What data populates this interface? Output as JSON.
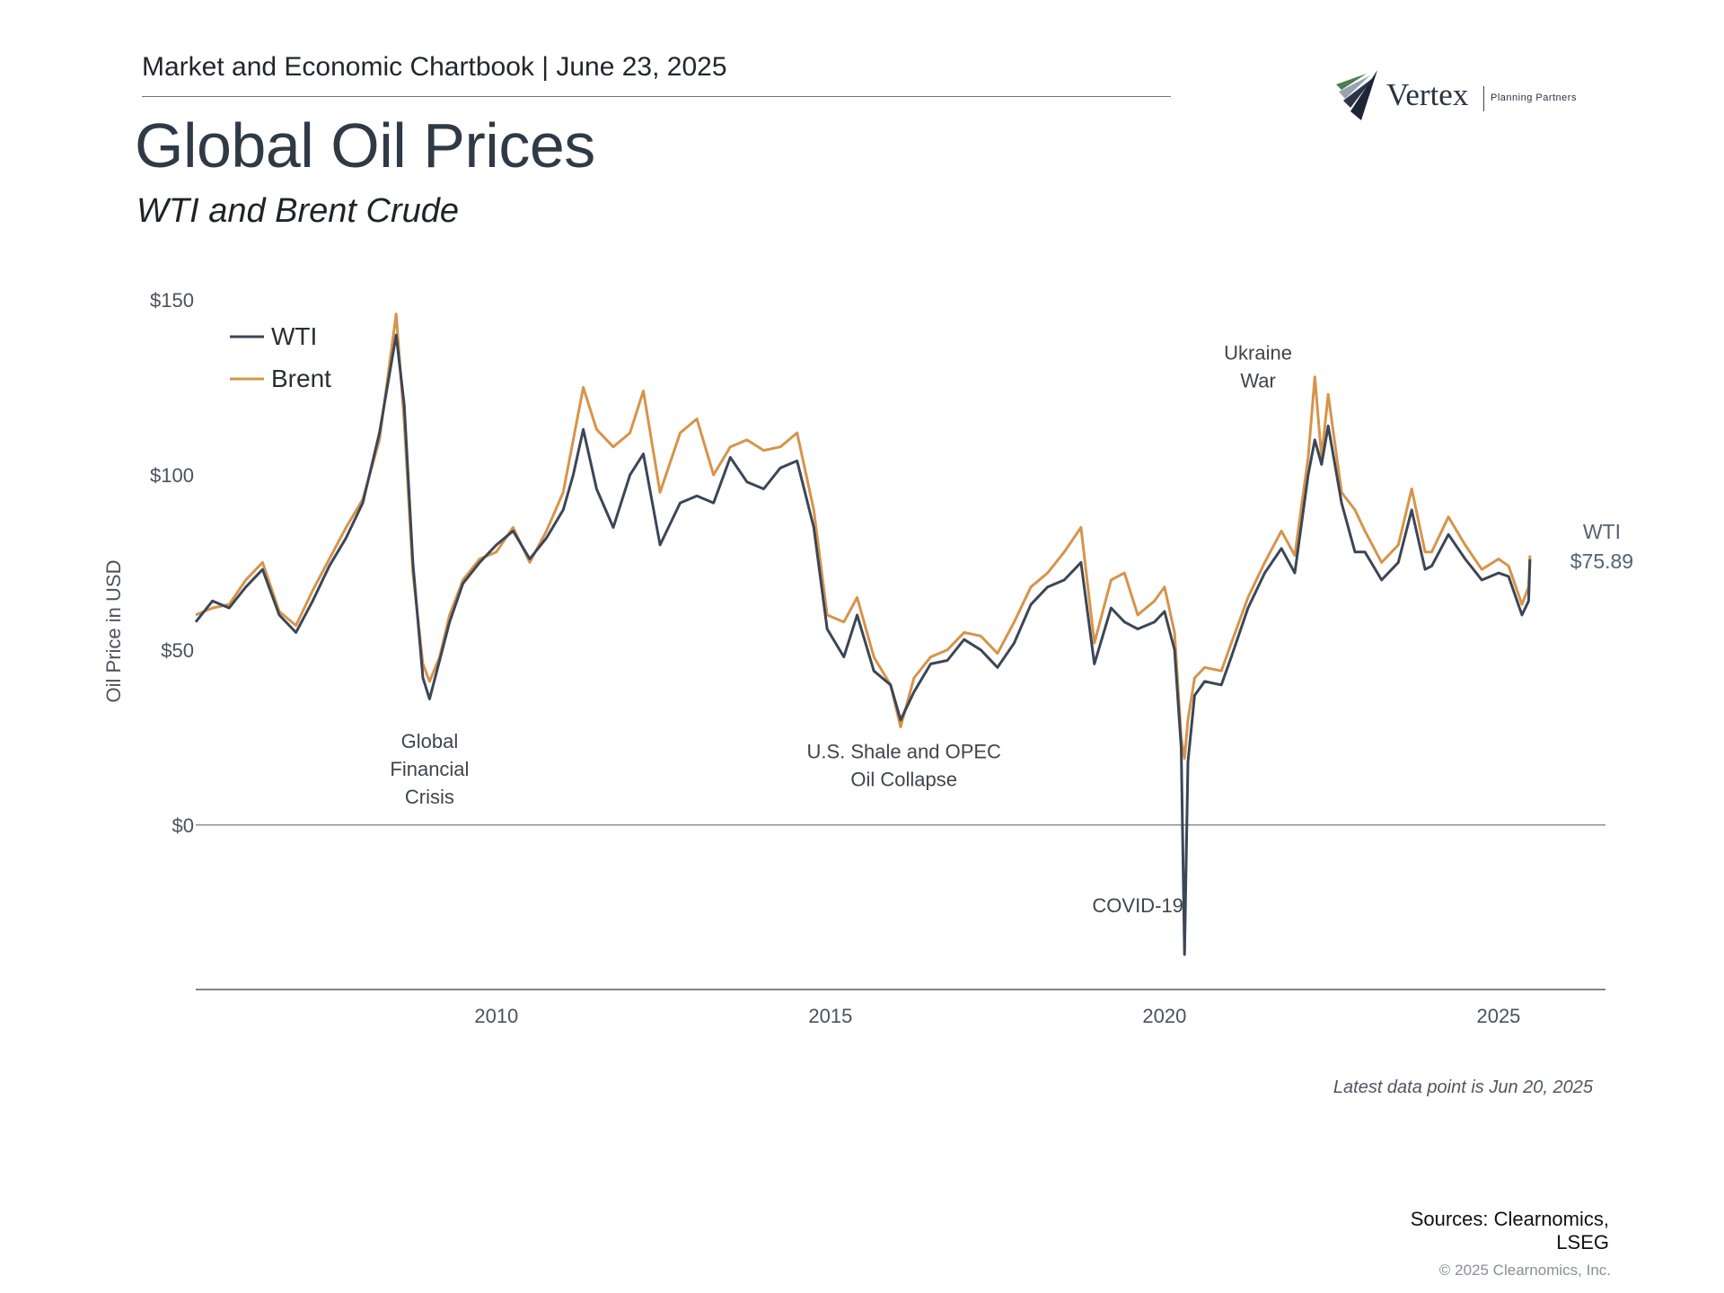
{
  "header": {
    "text": "Market and Economic Chartbook | June 23, 2025"
  },
  "logo": {
    "name": "Vertex",
    "tagline": "Planning Partners"
  },
  "title": "Global Oil Prices",
  "subtitle": "WTI and Brent Crude",
  "footnote": "Latest data point is Jun 20, 2025",
  "sources": "Sources: Clearnomics, LSEG",
  "copyright": "© 2025 Clearnomics, Inc.",
  "colors": {
    "wti": "#3b4656",
    "brent": "#d6944a",
    "axis": "#6f7780",
    "text": "#4a525c"
  },
  "chart_data": {
    "type": "line",
    "ylabel": "Oil Price in USD",
    "ylim": [
      -47,
      150
    ],
    "xlim": [
      2005.5,
      2026.6
    ],
    "yticks": [
      {
        "value": 150,
        "label": "$150"
      },
      {
        "value": 100,
        "label": "$100"
      },
      {
        "value": 50,
        "label": "$50"
      },
      {
        "value": 0,
        "label": "$0"
      }
    ],
    "xticks": [
      {
        "value": 2010,
        "label": "2010"
      },
      {
        "value": 2015,
        "label": "2015"
      },
      {
        "value": 2020,
        "label": "2020"
      },
      {
        "value": 2025,
        "label": "2025"
      }
    ],
    "legend_position": "top-left",
    "series": [
      {
        "name": "WTI",
        "points": [
          [
            2005.5,
            58
          ],
          [
            2005.75,
            64
          ],
          [
            2006.0,
            62
          ],
          [
            2006.25,
            68
          ],
          [
            2006.5,
            73
          ],
          [
            2006.75,
            60
          ],
          [
            2007.0,
            55
          ],
          [
            2007.25,
            64
          ],
          [
            2007.5,
            74
          ],
          [
            2007.75,
            82
          ],
          [
            2008.0,
            92
          ],
          [
            2008.25,
            112
          ],
          [
            2008.5,
            140
          ],
          [
            2008.62,
            120
          ],
          [
            2008.75,
            75
          ],
          [
            2008.9,
            42
          ],
          [
            2009.0,
            36
          ],
          [
            2009.15,
            47
          ],
          [
            2009.3,
            58
          ],
          [
            2009.5,
            69
          ],
          [
            2009.75,
            75
          ],
          [
            2010.0,
            80
          ],
          [
            2010.25,
            84
          ],
          [
            2010.5,
            76
          ],
          [
            2010.75,
            82
          ],
          [
            2011.0,
            90
          ],
          [
            2011.15,
            100
          ],
          [
            2011.3,
            113
          ],
          [
            2011.5,
            96
          ],
          [
            2011.75,
            85
          ],
          [
            2012.0,
            100
          ],
          [
            2012.2,
            106
          ],
          [
            2012.45,
            80
          ],
          [
            2012.75,
            92
          ],
          [
            2013.0,
            94
          ],
          [
            2013.25,
            92
          ],
          [
            2013.5,
            105
          ],
          [
            2013.75,
            98
          ],
          [
            2014.0,
            96
          ],
          [
            2014.25,
            102
          ],
          [
            2014.5,
            104
          ],
          [
            2014.75,
            85
          ],
          [
            2014.95,
            56
          ],
          [
            2015.2,
            48
          ],
          [
            2015.4,
            60
          ],
          [
            2015.65,
            44
          ],
          [
            2015.9,
            40
          ],
          [
            2016.05,
            30
          ],
          [
            2016.25,
            38
          ],
          [
            2016.5,
            46
          ],
          [
            2016.75,
            47
          ],
          [
            2017.0,
            53
          ],
          [
            2017.25,
            50
          ],
          [
            2017.5,
            45
          ],
          [
            2017.75,
            52
          ],
          [
            2018.0,
            63
          ],
          [
            2018.25,
            68
          ],
          [
            2018.5,
            70
          ],
          [
            2018.75,
            75
          ],
          [
            2018.95,
            46
          ],
          [
            2019.2,
            62
          ],
          [
            2019.4,
            58
          ],
          [
            2019.6,
            56
          ],
          [
            2019.85,
            58
          ],
          [
            2020.0,
            61
          ],
          [
            2020.15,
            50
          ],
          [
            2020.25,
            22
          ],
          [
            2020.3,
            -37
          ],
          [
            2020.35,
            18
          ],
          [
            2020.45,
            37
          ],
          [
            2020.6,
            41
          ],
          [
            2020.85,
            40
          ],
          [
            2021.0,
            48
          ],
          [
            2021.25,
            62
          ],
          [
            2021.5,
            72
          ],
          [
            2021.75,
            79
          ],
          [
            2021.95,
            72
          ],
          [
            2022.15,
            100
          ],
          [
            2022.25,
            110
          ],
          [
            2022.35,
            103
          ],
          [
            2022.45,
            114
          ],
          [
            2022.65,
            92
          ],
          [
            2022.85,
            78
          ],
          [
            2023.0,
            78
          ],
          [
            2023.25,
            70
          ],
          [
            2023.5,
            75
          ],
          [
            2023.7,
            90
          ],
          [
            2023.9,
            73
          ],
          [
            2024.0,
            74
          ],
          [
            2024.25,
            83
          ],
          [
            2024.5,
            76
          ],
          [
            2024.75,
            70
          ],
          [
            2025.0,
            72
          ],
          [
            2025.15,
            71
          ],
          [
            2025.35,
            60
          ],
          [
            2025.45,
            64
          ],
          [
            2025.47,
            75.89
          ]
        ]
      },
      {
        "name": "Brent",
        "points": [
          [
            2005.5,
            60
          ],
          [
            2005.75,
            62
          ],
          [
            2006.0,
            63
          ],
          [
            2006.25,
            70
          ],
          [
            2006.5,
            75
          ],
          [
            2006.75,
            61
          ],
          [
            2007.0,
            57
          ],
          [
            2007.25,
            67
          ],
          [
            2007.5,
            76
          ],
          [
            2007.75,
            85
          ],
          [
            2008.0,
            93
          ],
          [
            2008.25,
            110
          ],
          [
            2008.5,
            146
          ],
          [
            2008.62,
            115
          ],
          [
            2008.75,
            72
          ],
          [
            2008.9,
            46
          ],
          [
            2009.0,
            41
          ],
          [
            2009.15,
            48
          ],
          [
            2009.3,
            60
          ],
          [
            2009.5,
            70
          ],
          [
            2009.75,
            76
          ],
          [
            2010.0,
            78
          ],
          [
            2010.25,
            85
          ],
          [
            2010.5,
            75
          ],
          [
            2010.75,
            84
          ],
          [
            2011.0,
            95
          ],
          [
            2011.15,
            110
          ],
          [
            2011.3,
            125
          ],
          [
            2011.5,
            113
          ],
          [
            2011.75,
            108
          ],
          [
            2012.0,
            112
          ],
          [
            2012.2,
            124
          ],
          [
            2012.45,
            95
          ],
          [
            2012.75,
            112
          ],
          [
            2013.0,
            116
          ],
          [
            2013.25,
            100
          ],
          [
            2013.5,
            108
          ],
          [
            2013.75,
            110
          ],
          [
            2014.0,
            107
          ],
          [
            2014.25,
            108
          ],
          [
            2014.5,
            112
          ],
          [
            2014.75,
            90
          ],
          [
            2014.95,
            60
          ],
          [
            2015.2,
            58
          ],
          [
            2015.4,
            65
          ],
          [
            2015.65,
            48
          ],
          [
            2015.9,
            40
          ],
          [
            2016.05,
            28
          ],
          [
            2016.25,
            42
          ],
          [
            2016.5,
            48
          ],
          [
            2016.75,
            50
          ],
          [
            2017.0,
            55
          ],
          [
            2017.25,
            54
          ],
          [
            2017.5,
            49
          ],
          [
            2017.75,
            58
          ],
          [
            2018.0,
            68
          ],
          [
            2018.25,
            72
          ],
          [
            2018.5,
            78
          ],
          [
            2018.75,
            85
          ],
          [
            2018.95,
            52
          ],
          [
            2019.2,
            70
          ],
          [
            2019.4,
            72
          ],
          [
            2019.6,
            60
          ],
          [
            2019.85,
            64
          ],
          [
            2020.0,
            68
          ],
          [
            2020.15,
            55
          ],
          [
            2020.25,
            25
          ],
          [
            2020.3,
            19
          ],
          [
            2020.35,
            30
          ],
          [
            2020.45,
            42
          ],
          [
            2020.6,
            45
          ],
          [
            2020.85,
            44
          ],
          [
            2021.0,
            52
          ],
          [
            2021.25,
            65
          ],
          [
            2021.5,
            75
          ],
          [
            2021.75,
            84
          ],
          [
            2021.95,
            77
          ],
          [
            2022.15,
            105
          ],
          [
            2022.25,
            128
          ],
          [
            2022.35,
            105
          ],
          [
            2022.45,
            123
          ],
          [
            2022.65,
            95
          ],
          [
            2022.85,
            90
          ],
          [
            2023.0,
            84
          ],
          [
            2023.25,
            75
          ],
          [
            2023.5,
            80
          ],
          [
            2023.7,
            96
          ],
          [
            2023.9,
            78
          ],
          [
            2024.0,
            78
          ],
          [
            2024.25,
            88
          ],
          [
            2024.5,
            80
          ],
          [
            2024.75,
            73
          ],
          [
            2025.0,
            76
          ],
          [
            2025.15,
            74
          ],
          [
            2025.35,
            63
          ],
          [
            2025.45,
            68
          ],
          [
            2025.47,
            77
          ]
        ]
      }
    ],
    "annotations": [
      {
        "text": [
          "Global",
          "Financial",
          "Crisis"
        ],
        "x": 2009.0,
        "y": 22
      },
      {
        "text": [
          "U.S. Shale and OPEC",
          "Oil Collapse"
        ],
        "x": 2016.1,
        "y": 19
      },
      {
        "text": [
          "COVID-19"
        ],
        "x": 2019.6,
        "y": -25
      },
      {
        "text": [
          "Ukraine",
          "War"
        ],
        "x": 2021.4,
        "y": 133
      }
    ],
    "end_label": {
      "series": "WTI",
      "text": [
        "WTI",
        "$75.89"
      ]
    }
  }
}
